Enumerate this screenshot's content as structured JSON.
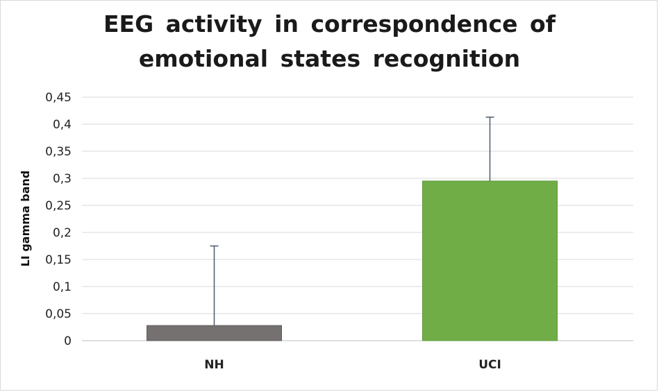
{
  "chart_data": {
    "type": "bar",
    "title_lines": [
      "EEG activity in correspondence of",
      "emotional states recognition"
    ],
    "ylabel": "LI gamma band",
    "xlabel": "",
    "categories": [
      "NH",
      "UCI"
    ],
    "series": [
      {
        "values": [
          0.028,
          0.295
        ],
        "error_upper": [
          0.147,
          0.118
        ],
        "colors": [
          "#767171",
          "#70ad47"
        ]
      }
    ],
    "ylim": [
      0,
      0.45
    ],
    "yticks": [
      "0",
      "0,05",
      "0,1",
      "0,15",
      "0,2",
      "0,25",
      "0,3",
      "0,35",
      "0,4",
      "0,45"
    ],
    "grid": true,
    "legend": "none"
  }
}
